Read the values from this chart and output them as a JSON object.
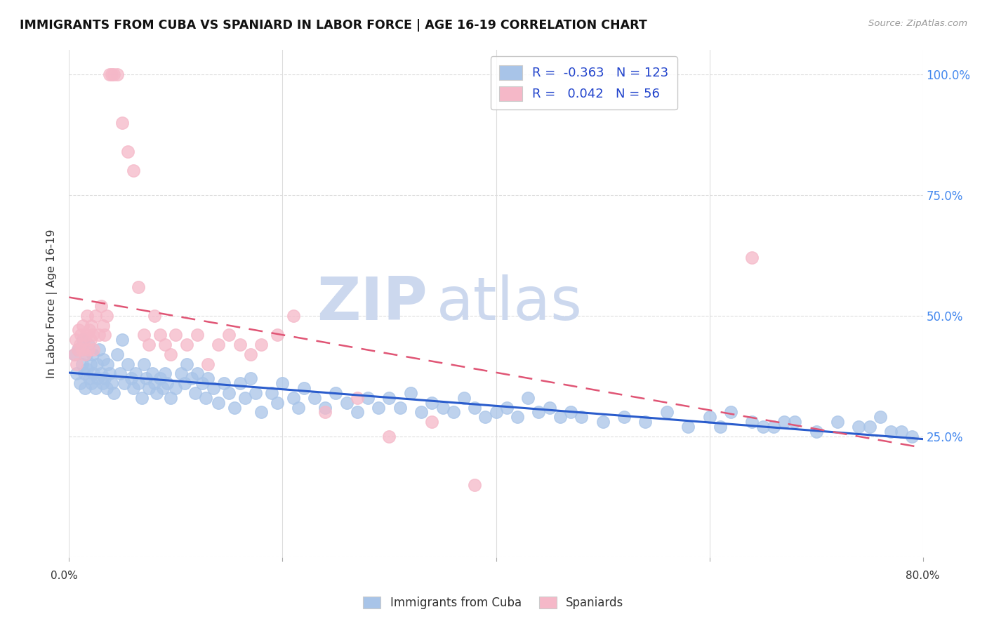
{
  "title": "IMMIGRANTS FROM CUBA VS SPANIARD IN LABOR FORCE | AGE 16-19 CORRELATION CHART",
  "source": "Source: ZipAtlas.com",
  "ylabel": "In Labor Force | Age 16-19",
  "ytick_values": [
    0.0,
    0.25,
    0.5,
    0.75,
    1.0
  ],
  "ytick_labels_right": [
    "",
    "25.0%",
    "50.0%",
    "75.0%",
    "100.0%"
  ],
  "xlim": [
    0.0,
    0.8
  ],
  "ylim": [
    0.0,
    1.05
  ],
  "cuba_R": -0.363,
  "cuba_N": 123,
  "spain_R": 0.042,
  "spain_N": 56,
  "cuba_color": "#a8c4e8",
  "spain_color": "#f5b8c8",
  "cuba_line_color": "#2a5ccc",
  "spain_line_color": "#e05575",
  "watermark_zip": "ZIP",
  "watermark_atlas": "atlas",
  "watermark_color": "#ccd8ee",
  "legend_label_cuba": "Immigrants from Cuba",
  "legend_label_spain": "Spaniards",
  "background_color": "#ffffff",
  "grid_color": "#dddddd",
  "grid_style": "--",
  "title_fontsize": 12.5,
  "tick_label_color_right": "#4488ee",
  "cuba_x": [
    0.005,
    0.007,
    0.008,
    0.01,
    0.012,
    0.013,
    0.014,
    0.015,
    0.016,
    0.017,
    0.018,
    0.019,
    0.02,
    0.021,
    0.022,
    0.023,
    0.025,
    0.026,
    0.027,
    0.028,
    0.03,
    0.031,
    0.032,
    0.033,
    0.035,
    0.036,
    0.038,
    0.04,
    0.042,
    0.045,
    0.048,
    0.05,
    0.052,
    0.055,
    0.058,
    0.06,
    0.062,
    0.065,
    0.068,
    0.07,
    0.072,
    0.075,
    0.078,
    0.08,
    0.082,
    0.085,
    0.088,
    0.09,
    0.092,
    0.095,
    0.1,
    0.105,
    0.108,
    0.11,
    0.115,
    0.118,
    0.12,
    0.125,
    0.128,
    0.13,
    0.135,
    0.14,
    0.145,
    0.15,
    0.155,
    0.16,
    0.165,
    0.17,
    0.175,
    0.18,
    0.19,
    0.195,
    0.2,
    0.21,
    0.215,
    0.22,
    0.23,
    0.24,
    0.25,
    0.26,
    0.27,
    0.28,
    0.29,
    0.3,
    0.31,
    0.32,
    0.33,
    0.34,
    0.35,
    0.36,
    0.37,
    0.38,
    0.39,
    0.4,
    0.41,
    0.42,
    0.43,
    0.44,
    0.45,
    0.46,
    0.47,
    0.48,
    0.5,
    0.52,
    0.54,
    0.56,
    0.58,
    0.6,
    0.61,
    0.62,
    0.64,
    0.65,
    0.66,
    0.67,
    0.68,
    0.7,
    0.72,
    0.74,
    0.75,
    0.76,
    0.77,
    0.78,
    0.79
  ],
  "cuba_y": [
    0.42,
    0.38,
    0.43,
    0.36,
    0.4,
    0.45,
    0.38,
    0.35,
    0.42,
    0.39,
    0.44,
    0.37,
    0.4,
    0.36,
    0.42,
    0.38,
    0.35,
    0.4,
    0.37,
    0.43,
    0.38,
    0.36,
    0.41,
    0.37,
    0.35,
    0.4,
    0.38,
    0.36,
    0.34,
    0.42,
    0.38,
    0.45,
    0.36,
    0.4,
    0.37,
    0.35,
    0.38,
    0.36,
    0.33,
    0.4,
    0.37,
    0.35,
    0.38,
    0.36,
    0.34,
    0.37,
    0.35,
    0.38,
    0.36,
    0.33,
    0.35,
    0.38,
    0.36,
    0.4,
    0.37,
    0.34,
    0.38,
    0.36,
    0.33,
    0.37,
    0.35,
    0.32,
    0.36,
    0.34,
    0.31,
    0.36,
    0.33,
    0.37,
    0.34,
    0.3,
    0.34,
    0.32,
    0.36,
    0.33,
    0.31,
    0.35,
    0.33,
    0.31,
    0.34,
    0.32,
    0.3,
    0.33,
    0.31,
    0.33,
    0.31,
    0.34,
    0.3,
    0.32,
    0.31,
    0.3,
    0.33,
    0.31,
    0.29,
    0.3,
    0.31,
    0.29,
    0.33,
    0.3,
    0.31,
    0.29,
    0.3,
    0.29,
    0.28,
    0.29,
    0.28,
    0.3,
    0.27,
    0.29,
    0.27,
    0.3,
    0.28,
    0.27,
    0.27,
    0.28,
    0.28,
    0.26,
    0.28,
    0.27,
    0.27,
    0.29,
    0.26,
    0.26,
    0.25
  ],
  "spain_x": [
    0.005,
    0.006,
    0.007,
    0.008,
    0.009,
    0.01,
    0.011,
    0.012,
    0.013,
    0.014,
    0.015,
    0.016,
    0.017,
    0.018,
    0.019,
    0.02,
    0.021,
    0.022,
    0.023,
    0.025,
    0.028,
    0.03,
    0.032,
    0.033,
    0.035,
    0.038,
    0.04,
    0.042,
    0.045,
    0.05,
    0.055,
    0.06,
    0.065,
    0.07,
    0.075,
    0.08,
    0.085,
    0.09,
    0.095,
    0.1,
    0.11,
    0.12,
    0.13,
    0.14,
    0.15,
    0.16,
    0.17,
    0.18,
    0.195,
    0.21,
    0.24,
    0.27,
    0.3,
    0.34,
    0.38,
    0.64
  ],
  "spain_y": [
    0.42,
    0.45,
    0.4,
    0.43,
    0.47,
    0.44,
    0.46,
    0.43,
    0.48,
    0.45,
    0.42,
    0.46,
    0.5,
    0.43,
    0.47,
    0.45,
    0.48,
    0.46,
    0.43,
    0.5,
    0.46,
    0.52,
    0.48,
    0.46,
    0.5,
    1.0,
    1.0,
    1.0,
    1.0,
    0.9,
    0.84,
    0.8,
    0.56,
    0.46,
    0.44,
    0.5,
    0.46,
    0.44,
    0.42,
    0.46,
    0.44,
    0.46,
    0.4,
    0.44,
    0.46,
    0.44,
    0.42,
    0.44,
    0.46,
    0.5,
    0.3,
    0.33,
    0.25,
    0.28,
    0.15,
    0.62
  ]
}
